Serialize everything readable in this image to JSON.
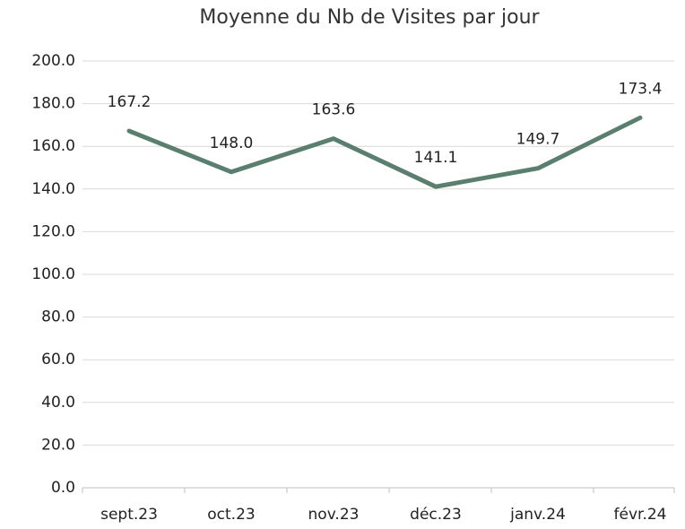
{
  "chart_data": {
    "type": "line",
    "title": "Moyenne du Nb de Visites par jour",
    "categories": [
      "sept.23",
      "oct.23",
      "nov.23",
      "déc.23",
      "janv.24",
      "févr.24"
    ],
    "series": [
      {
        "name": "Moyenne du Nb de Visites par jour",
        "color": "#5b7f6f",
        "values": [
          167.2,
          148.0,
          163.6,
          141.1,
          149.7,
          173.4
        ],
        "value_labels": [
          "167.2",
          "148.0",
          "163.6",
          "141.1",
          "149.7",
          "173.4"
        ]
      }
    ],
    "ylim": [
      0,
      200
    ],
    "yticks": [
      {
        "value": 0,
        "label": "0.0"
      },
      {
        "value": 20,
        "label": "20.0"
      },
      {
        "value": 40,
        "label": "40.0"
      },
      {
        "value": 60,
        "label": "60.0"
      },
      {
        "value": 80,
        "label": "80.0"
      },
      {
        "value": 100,
        "label": "100.0"
      },
      {
        "value": 120,
        "label": "120.0"
      },
      {
        "value": 140,
        "label": "140.0"
      },
      {
        "value": 160,
        "label": "160.0"
      },
      {
        "value": 180,
        "label": "180.0"
      },
      {
        "value": 200,
        "label": "200.0"
      }
    ],
    "grid": true
  }
}
